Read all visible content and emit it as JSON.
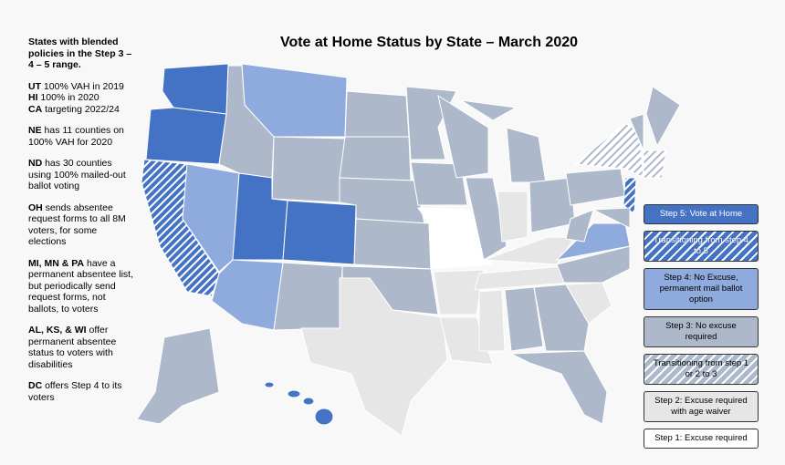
{
  "title": "Vote at Home Status by State – March 2020",
  "notes": [
    [
      {
        "b": "States with blended policies in the Step 3 – 4 – 5 range."
      }
    ],
    [
      {
        "b": "UT",
        "t": "100% VAH in 2019"
      },
      {
        "b": "HI",
        "t": "100% in 2020"
      },
      {
        "b": "CA",
        "t": "targeting 2022/24"
      }
    ],
    [
      {
        "b": "NE",
        "t": "has 11 counties on 100% VAH for 2020"
      }
    ],
    [
      {
        "b": "ND",
        "t": "has 30 counties using 100% mailed-out ballot voting"
      }
    ],
    [
      {
        "b": "OH",
        "t": "sends absentee request forms to all 8M voters, for some elections"
      }
    ],
    [
      {
        "b": "MI, MN & PA",
        "t": "have a permanent absentee list, but periodically send request forms, not ballots, to voters"
      }
    ],
    [
      {
        "b": "AL, KS, & WI",
        "t": "offer permanent absentee status to voters with disabilities"
      }
    ],
    [
      {
        "b": "DC",
        "t": "offers Step 4 to its voters"
      }
    ]
  ],
  "legend": [
    {
      "label": "Step 5: Vote at Home",
      "color": "#4472c4",
      "text_color": "#ffffff"
    },
    {
      "label": "Transitioning from step 4 to 5",
      "color": "#4472c4",
      "hatch": true,
      "text_color": "#ffffff"
    },
    {
      "label": "Step 4: No Excuse, permanent mail ballot option",
      "color": "#8faadc",
      "text_color": "#000000"
    },
    {
      "label": "Step 3: No excuse required",
      "color": "#adb9ca",
      "text_color": "#000000"
    },
    {
      "label": "Transitioning from step 1 or 2 to 3",
      "color": "#adb9ca",
      "hatch": true,
      "text_color": "#000000"
    },
    {
      "label": "Step 2: Excuse required with age waiver",
      "color": "#e7e6e6",
      "text_color": "#000000"
    },
    {
      "label": "Step 1: Excuse required",
      "color": "#ffffff",
      "text_color": "#000000"
    }
  ]
}
